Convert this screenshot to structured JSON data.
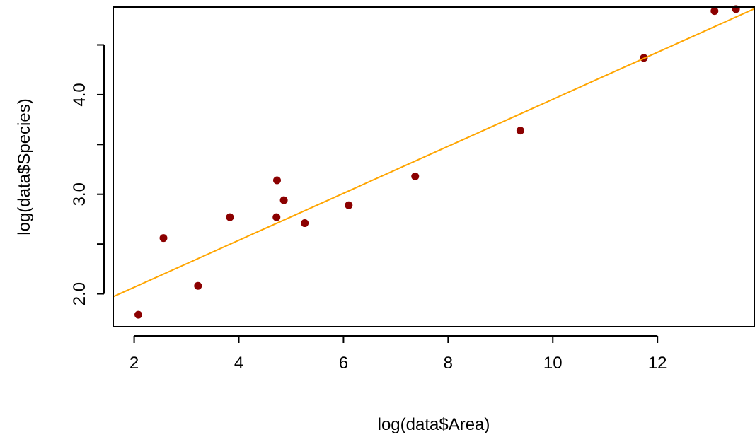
{
  "chart_data": {
    "type": "scatter",
    "title": "",
    "xlabel": "log(data$Area)",
    "ylabel": "log(data$Species)",
    "xlim": [
      1.6,
      13.85
    ],
    "ylim": [
      1.67,
      4.88
    ],
    "x_ticks": [
      2,
      4,
      6,
      8,
      10,
      12
    ],
    "x_tick_labels": [
      "2",
      "4",
      "6",
      "8",
      "10",
      "12"
    ],
    "y_ticks": [
      2.0,
      2.5,
      3.0,
      3.5,
      4.0,
      4.5
    ],
    "y_tick_labels": [
      "2.0",
      "",
      "3.0",
      "",
      "4.0",
      ""
    ],
    "grid": false,
    "series": [
      {
        "points": [
          {
            "x": 2.08,
            "y": 1.79
          },
          {
            "x": 2.56,
            "y": 2.56
          },
          {
            "x": 3.22,
            "y": 2.08
          },
          {
            "x": 3.83,
            "y": 2.77
          },
          {
            "x": 4.72,
            "y": 2.77
          },
          {
            "x": 4.73,
            "y": 3.14
          },
          {
            "x": 4.86,
            "y": 2.94
          },
          {
            "x": 5.26,
            "y": 2.71
          },
          {
            "x": 6.1,
            "y": 2.89
          },
          {
            "x": 7.37,
            "y": 3.18
          },
          {
            "x": 9.38,
            "y": 3.64
          },
          {
            "x": 11.74,
            "y": 4.37
          },
          {
            "x": 13.09,
            "y": 4.84
          },
          {
            "x": 13.5,
            "y": 4.86
          }
        ],
        "color": "#8b0000"
      }
    ],
    "fit_line": {
      "intercept": 1.594,
      "slope": 0.236,
      "color": "#ffa500"
    }
  }
}
